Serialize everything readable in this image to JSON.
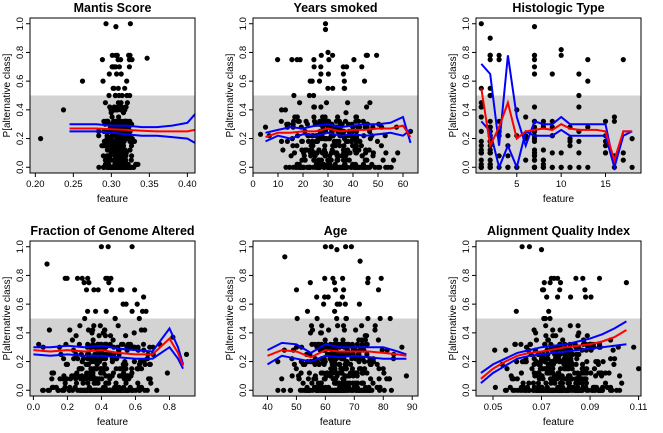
{
  "chart_data": [
    {
      "type": "scatter",
      "title": "Mantis Score",
      "xlabel": "feature",
      "ylabel": "P[alternative class]",
      "xlim": [
        0.193,
        0.41
      ],
      "ylim": [
        0,
        1.0
      ],
      "xticks": [
        0.2,
        0.25,
        0.3,
        0.35,
        0.4
      ],
      "xtick_labels": [
        "0.20",
        "0.25",
        "0.30",
        "0.35",
        "0.40"
      ],
      "yticks": [
        0,
        0.2,
        0.4,
        0.6,
        0.8,
        1.0
      ],
      "ytick_labels": [
        "0.0",
        "0.2",
        "0.4",
        "0.6",
        "0.8",
        "1.0"
      ],
      "shade_ymax": 0.5,
      "scatter": {
        "x_center": 0.31,
        "x_spread": 0.03,
        "y_center": 0.25,
        "y_spread": 0.25,
        "n": 420,
        "extra_points": [
          [
            0.207,
            0.2
          ],
          [
            0.237,
            0.4
          ],
          [
            0.262,
            0.6
          ],
          [
            0.293,
            1.0
          ],
          [
            0.306,
            0.98
          ],
          [
            0.325,
            1.0
          ],
          [
            0.347,
            0.76
          ]
        ]
      },
      "series": [
        {
          "color": "#0000ff",
          "x": [
            0.245,
            0.26,
            0.28,
            0.3,
            0.32,
            0.34,
            0.36,
            0.38,
            0.4,
            0.41
          ],
          "y": [
            0.3,
            0.3,
            0.3,
            0.29,
            0.29,
            0.28,
            0.28,
            0.29,
            0.31,
            0.37
          ]
        },
        {
          "color": "#0000ff",
          "x": [
            0.245,
            0.26,
            0.28,
            0.3,
            0.32,
            0.34,
            0.36,
            0.38,
            0.4,
            0.41
          ],
          "y": [
            0.25,
            0.25,
            0.25,
            0.24,
            0.23,
            0.22,
            0.22,
            0.21,
            0.2,
            0.17
          ]
        },
        {
          "color": "#ff0000",
          "x": [
            0.245,
            0.26,
            0.28,
            0.3,
            0.32,
            0.34,
            0.36,
            0.38,
            0.4,
            0.41
          ],
          "y": [
            0.27,
            0.27,
            0.27,
            0.265,
            0.26,
            0.255,
            0.25,
            0.25,
            0.25,
            0.26
          ]
        }
      ]
    },
    {
      "type": "scatter",
      "title": "Years smoked",
      "xlabel": "feature",
      "ylabel": "P[alternative class]",
      "xlim": [
        0,
        66
      ],
      "ylim": [
        0,
        1.0
      ],
      "xticks": [
        0,
        10,
        20,
        30,
        40,
        50,
        60
      ],
      "xtick_labels": [
        "0",
        "10",
        "20",
        "30",
        "40",
        "50",
        "60"
      ],
      "yticks": [
        0,
        0.2,
        0.4,
        0.6,
        0.8,
        1.0
      ],
      "ytick_labels": [
        "0.0",
        "0.2",
        "0.4",
        "0.6",
        "0.8",
        "1.0"
      ],
      "shade_ymax": 0.5,
      "scatter": {
        "x_center": 32,
        "x_spread": 30,
        "y_center": 0.25,
        "y_spread": 0.25,
        "n": 400,
        "extra_points": [
          [
            29,
            1.0
          ],
          [
            29,
            0.96
          ],
          [
            30,
            0.8
          ],
          [
            5,
            0.28
          ],
          [
            63,
            0.25
          ],
          [
            3,
            0.23
          ]
        ]
      },
      "series": [
        {
          "color": "#0000ff",
          "x": [
            5,
            10,
            15,
            20,
            25,
            30,
            35,
            40,
            45,
            50,
            55,
            60,
            63
          ],
          "y": [
            0.24,
            0.26,
            0.28,
            0.27,
            0.29,
            0.3,
            0.28,
            0.29,
            0.3,
            0.3,
            0.31,
            0.35,
            0.17
          ]
        },
        {
          "color": "#0000ff",
          "x": [
            5,
            10,
            15,
            20,
            25,
            30,
            35,
            40,
            45,
            50,
            55,
            60,
            63
          ],
          "y": [
            0.18,
            0.22,
            0.2,
            0.23,
            0.22,
            0.24,
            0.22,
            0.23,
            0.22,
            0.23,
            0.24,
            0.22,
            0.26
          ]
        },
        {
          "color": "#ff0000",
          "x": [
            5,
            10,
            15,
            20,
            25,
            30,
            35,
            40,
            45,
            50,
            55,
            60,
            63
          ],
          "y": [
            0.21,
            0.24,
            0.24,
            0.25,
            0.25,
            0.27,
            0.25,
            0.26,
            0.26,
            0.27,
            0.27,
            0.29,
            0.21
          ]
        }
      ]
    },
    {
      "type": "scatter",
      "title": "Histologic Type",
      "xlabel": "feature",
      "ylabel": "P[alternative class]",
      "xlim": [
        0.4,
        19
      ],
      "ylim": [
        0,
        1.0
      ],
      "xticks": [
        5,
        10,
        15
      ],
      "xtick_labels": [
        "5",
        "10",
        "15"
      ],
      "yticks": [
        0,
        0.2,
        0.4,
        0.6,
        0.8,
        1.0
      ],
      "ytick_labels": [
        "0.0",
        "0.2",
        "0.4",
        "0.6",
        "0.8",
        "1.0"
      ],
      "shade_ymax": 0.5,
      "scatter": {
        "x_discrete": [
          1,
          2,
          3,
          4,
          5,
          6,
          7,
          8,
          9,
          10,
          11,
          12,
          13,
          14,
          15,
          16,
          17,
          18
        ],
        "x_weights": [
          30,
          30,
          8,
          6,
          4,
          5,
          30,
          10,
          6,
          5,
          5,
          5,
          5,
          3,
          4,
          4,
          4,
          3
        ],
        "y_center": 0.25,
        "y_spread": 0.25,
        "n": 160,
        "extra_points": [
          [
            1,
            1.0
          ],
          [
            2,
            0.9
          ],
          [
            7,
            0.98
          ],
          [
            10,
            0.82
          ],
          [
            12,
            0.65
          ],
          [
            13,
            0.6
          ],
          [
            17,
            0.75
          ],
          [
            17,
            0.1
          ],
          [
            16,
            0.0
          ]
        ]
      },
      "series": [
        {
          "color": "#0000ff",
          "x": [
            1,
            2,
            3,
            4,
            5,
            6,
            7,
            8,
            9,
            10,
            11,
            12,
            13,
            14,
            15,
            16,
            17,
            18
          ],
          "y": [
            0.72,
            0.65,
            0.15,
            0.78,
            0.35,
            0.15,
            0.32,
            0.3,
            0.3,
            0.35,
            0.3,
            0.3,
            0.3,
            0.3,
            0.3,
            0.0,
            0.25,
            0.25
          ]
        },
        {
          "color": "#0000ff",
          "x": [
            1,
            2,
            3,
            4,
            5,
            6,
            7,
            8,
            9,
            10,
            11,
            12,
            13,
            14,
            15,
            16,
            17,
            18
          ],
          "y": [
            0.32,
            0.25,
            0.0,
            0.15,
            0.0,
            0.25,
            0.22,
            0.22,
            0.22,
            0.26,
            0.22,
            0.22,
            0.22,
            0.22,
            0.22,
            0.0,
            0.22,
            0.25
          ]
        },
        {
          "color": "#ff0000",
          "x": [
            1,
            2,
            3,
            4,
            5,
            6,
            7,
            8,
            9,
            10,
            11,
            12,
            13,
            14,
            15,
            16,
            17,
            18
          ],
          "y": [
            0.55,
            0.15,
            0.28,
            0.45,
            0.2,
            0.25,
            0.26,
            0.27,
            0.26,
            0.3,
            0.27,
            0.26,
            0.26,
            0.26,
            0.25,
            0.05,
            0.25,
            0.25
          ]
        }
      ]
    },
    {
      "type": "scatter",
      "title": "Fraction of Genome Altered",
      "xlabel": "feature",
      "ylabel": "P[alternative class]",
      "xlim": [
        -0.02,
        0.95
      ],
      "ylim": [
        0,
        1.0
      ],
      "xticks": [
        0.0,
        0.2,
        0.4,
        0.6,
        0.8
      ],
      "xtick_labels": [
        "0.0",
        "0.2",
        "0.4",
        "0.6",
        "0.8"
      ],
      "yticks": [
        0,
        0.2,
        0.4,
        0.6,
        0.8,
        1.0
      ],
      "ytick_labels": [
        "0.0",
        "0.2",
        "0.4",
        "0.6",
        "0.8",
        "1.0"
      ],
      "shade_ymax": 0.5,
      "scatter": {
        "x_center": 0.4,
        "x_spread": 0.42,
        "y_center": 0.25,
        "y_spread": 0.25,
        "n": 420,
        "extra_points": [
          [
            0.4,
            1.0
          ],
          [
            0.44,
            1.0
          ],
          [
            0.58,
            1.0
          ],
          [
            0.08,
            0.88
          ],
          [
            0.9,
            0.25
          ],
          [
            0.82,
            0.37
          ]
        ]
      },
      "series": [
        {
          "color": "#0000ff",
          "x": [
            0.0,
            0.1,
            0.2,
            0.3,
            0.4,
            0.5,
            0.6,
            0.7,
            0.8,
            0.85,
            0.88
          ],
          "y": [
            0.3,
            0.3,
            0.31,
            0.3,
            0.31,
            0.29,
            0.28,
            0.27,
            0.43,
            0.3,
            0.18
          ]
        },
        {
          "color": "#0000ff",
          "x": [
            0.0,
            0.1,
            0.2,
            0.3,
            0.4,
            0.5,
            0.6,
            0.7,
            0.8,
            0.85,
            0.88
          ],
          "y": [
            0.25,
            0.24,
            0.25,
            0.24,
            0.24,
            0.23,
            0.22,
            0.22,
            0.3,
            0.22,
            0.15
          ]
        },
        {
          "color": "#ff0000",
          "x": [
            0.0,
            0.1,
            0.2,
            0.3,
            0.4,
            0.5,
            0.6,
            0.7,
            0.8,
            0.85,
            0.88
          ],
          "y": [
            0.28,
            0.27,
            0.28,
            0.27,
            0.28,
            0.26,
            0.25,
            0.25,
            0.36,
            0.26,
            0.17
          ]
        }
      ]
    },
    {
      "type": "scatter",
      "title": "Age",
      "xlabel": "feature",
      "ylabel": "P[alternative class]",
      "xlim": [
        35,
        92
      ],
      "ylim": [
        0,
        1.0
      ],
      "xticks": [
        40,
        50,
        60,
        70,
        80,
        90
      ],
      "xtick_labels": [
        "40",
        "50",
        "60",
        "70",
        "80",
        "90"
      ],
      "yticks": [
        0,
        0.2,
        0.4,
        0.6,
        0.8,
        1.0
      ],
      "ytick_labels": [
        "0.0",
        "0.2",
        "0.4",
        "0.6",
        "0.8",
        "1.0"
      ],
      "shade_ymax": 0.5,
      "scatter": {
        "x_center": 65,
        "x_spread": 24,
        "y_center": 0.25,
        "y_spread": 0.25,
        "n": 420,
        "extra_points": [
          [
            60,
            1.0
          ],
          [
            62,
            1.0
          ],
          [
            64,
            0.98
          ],
          [
            67,
            1.0
          ],
          [
            69,
            1.0
          ],
          [
            72,
            0.9
          ],
          [
            46,
            0.93
          ],
          [
            88,
            0.1
          ]
        ]
      },
      "series": [
        {
          "color": "#0000ff",
          "x": [
            40,
            45,
            50,
            55,
            60,
            65,
            70,
            75,
            80,
            85,
            88
          ],
          "y": [
            0.28,
            0.33,
            0.32,
            0.26,
            0.32,
            0.3,
            0.3,
            0.3,
            0.3,
            0.27,
            0.25
          ]
        },
        {
          "color": "#0000ff",
          "x": [
            40,
            45,
            50,
            55,
            60,
            65,
            70,
            75,
            80,
            85,
            88
          ],
          "y": [
            0.18,
            0.24,
            0.22,
            0.2,
            0.24,
            0.23,
            0.24,
            0.23,
            0.22,
            0.22,
            0.22
          ]
        },
        {
          "color": "#ff0000",
          "x": [
            40,
            45,
            50,
            55,
            60,
            65,
            70,
            75,
            80,
            85,
            88
          ],
          "y": [
            0.24,
            0.28,
            0.27,
            0.23,
            0.28,
            0.27,
            0.27,
            0.27,
            0.26,
            0.25,
            0.24
          ]
        }
      ]
    },
    {
      "type": "scatter",
      "title": "Alignment Quality Index",
      "xlabel": "feature",
      "ylabel": "P[alternative class]",
      "xlim": [
        0.043,
        0.111
      ],
      "ylim": [
        0,
        1.0
      ],
      "xticks": [
        0.05,
        0.07,
        0.09,
        0.11
      ],
      "xtick_labels": [
        "0.05",
        "0.07",
        "0.09",
        "0.11"
      ],
      "yticks": [
        0,
        0.2,
        0.4,
        0.6,
        0.8,
        1.0
      ],
      "ytick_labels": [
        "0.0",
        "0.2",
        "0.4",
        "0.6",
        "0.8",
        "1.0"
      ],
      "shade_ymax": 0.5,
      "scatter": {
        "x_center": 0.078,
        "x_spread": 0.03,
        "y_center": 0.26,
        "y_spread": 0.25,
        "n": 420,
        "extra_points": [
          [
            0.062,
            1.0
          ],
          [
            0.065,
            1.0
          ],
          [
            0.07,
            0.98
          ],
          [
            0.105,
            0.75
          ],
          [
            0.108,
            0.3
          ],
          [
            0.11,
            0.15
          ]
        ]
      },
      "series": [
        {
          "color": "#0000ff",
          "x": [
            0.045,
            0.05,
            0.055,
            0.06,
            0.065,
            0.07,
            0.075,
            0.08,
            0.085,
            0.09,
            0.095,
            0.1,
            0.105
          ],
          "y": [
            0.12,
            0.18,
            0.22,
            0.26,
            0.28,
            0.3,
            0.31,
            0.32,
            0.34,
            0.36,
            0.39,
            0.43,
            0.48
          ]
        },
        {
          "color": "#0000ff",
          "x": [
            0.045,
            0.05,
            0.055,
            0.06,
            0.065,
            0.07,
            0.075,
            0.08,
            0.085,
            0.09,
            0.095,
            0.1,
            0.105
          ],
          "y": [
            0.05,
            0.12,
            0.17,
            0.22,
            0.24,
            0.25,
            0.26,
            0.27,
            0.28,
            0.29,
            0.3,
            0.31,
            0.32
          ]
        },
        {
          "color": "#ff0000",
          "x": [
            0.045,
            0.05,
            0.055,
            0.06,
            0.065,
            0.07,
            0.075,
            0.08,
            0.085,
            0.09,
            0.095,
            0.1,
            0.105
          ],
          "y": [
            0.08,
            0.15,
            0.2,
            0.24,
            0.26,
            0.27,
            0.285,
            0.3,
            0.31,
            0.32,
            0.34,
            0.37,
            0.42
          ]
        }
      ]
    }
  ]
}
